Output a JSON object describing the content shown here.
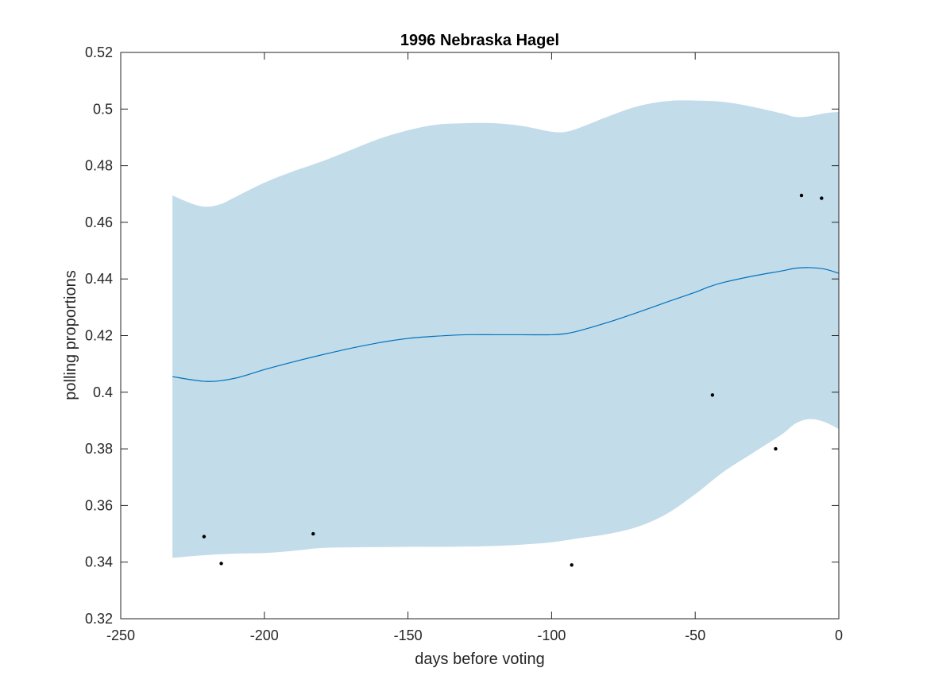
{
  "chart_data": {
    "type": "line",
    "title": "1996 Nebraska Hagel",
    "xlabel": "days before voting",
    "ylabel": "polling proportions",
    "xlim": [
      -250,
      0
    ],
    "ylim": [
      0.32,
      0.52
    ],
    "xticks": [
      -250,
      -200,
      -150,
      -100,
      -50,
      0
    ],
    "xtick_labels": [
      "-250",
      "-200",
      "-150",
      "-100",
      "-50",
      "0"
    ],
    "yticks": [
      0.32,
      0.34,
      0.36,
      0.38,
      0.4,
      0.42,
      0.44,
      0.46,
      0.48,
      0.5,
      0.52
    ],
    "ytick_labels": [
      "0.32",
      "0.34",
      "0.36",
      "0.38",
      "0.4",
      "0.42",
      "0.44",
      "0.46",
      "0.48",
      "0.5",
      "0.52"
    ],
    "grid": false,
    "legend": "none",
    "colors": {
      "band": "#c2dcea",
      "line": "#0072bd",
      "points": "#000000",
      "axes": "#262626"
    },
    "series": [
      {
        "kind": "line",
        "x": [
          -232,
          -220,
          -210,
          -200,
          -190,
          -180,
          -170,
          -160,
          -150,
          -140,
          -130,
          -120,
          -110,
          -100,
          -95,
          -90,
          -80,
          -70,
          -60,
          -50,
          -45,
          -40,
          -30,
          -20,
          -15,
          -10,
          -5,
          0
        ],
        "values": [
          0.4055,
          0.4038,
          0.405,
          0.408,
          0.4107,
          0.4132,
          0.4155,
          0.4175,
          0.419,
          0.4198,
          0.4203,
          0.4203,
          0.4203,
          0.4203,
          0.4207,
          0.4218,
          0.4248,
          0.4282,
          0.4318,
          0.4353,
          0.4373,
          0.4388,
          0.441,
          0.4428,
          0.4438,
          0.444,
          0.4435,
          0.442
        ]
      },
      {
        "kind": "band_upper",
        "x": [
          -232,
          -225,
          -220,
          -215,
          -210,
          -200,
          -190,
          -180,
          -170,
          -160,
          -150,
          -140,
          -130,
          -120,
          -110,
          -100,
          -95,
          -90,
          -80,
          -70,
          -60,
          -50,
          -40,
          -30,
          -20,
          -15,
          -10,
          -5,
          0
        ],
        "values": [
          0.4695,
          0.4665,
          0.4655,
          0.4665,
          0.469,
          0.474,
          0.478,
          0.4815,
          0.4855,
          0.4895,
          0.4925,
          0.4945,
          0.495,
          0.495,
          0.494,
          0.492,
          0.492,
          0.4935,
          0.4975,
          0.501,
          0.5028,
          0.503,
          0.5025,
          0.5008,
          0.4985,
          0.4972,
          0.4975,
          0.4985,
          0.499
        ]
      },
      {
        "kind": "band_lower",
        "x": [
          -232,
          -220,
          -210,
          -200,
          -190,
          -180,
          -170,
          -160,
          -150,
          -140,
          -130,
          -120,
          -110,
          -100,
          -90,
          -80,
          -70,
          -60,
          -50,
          -40,
          -30,
          -20,
          -15,
          -10,
          -5,
          0
        ],
        "values": [
          0.3415,
          0.3425,
          0.343,
          0.3432,
          0.344,
          0.345,
          0.3452,
          0.3453,
          0.3454,
          0.3454,
          0.3455,
          0.3457,
          0.3462,
          0.347,
          0.3485,
          0.35,
          0.3525,
          0.357,
          0.364,
          0.372,
          0.3785,
          0.385,
          0.389,
          0.3905,
          0.3895,
          0.387
        ]
      },
      {
        "kind": "scatter",
        "x": [
          -221,
          -215,
          -183,
          -93,
          -44,
          -22,
          -13,
          -6
        ],
        "values": [
          0.349,
          0.3395,
          0.35,
          0.339,
          0.399,
          0.38,
          0.4695,
          0.4685
        ]
      }
    ]
  }
}
